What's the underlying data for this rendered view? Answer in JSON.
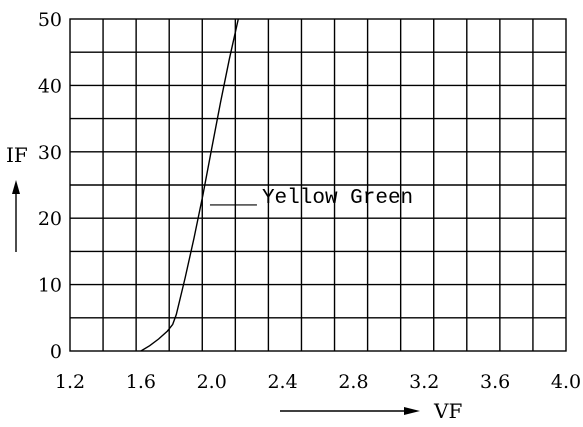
{
  "chart_data": {
    "type": "line",
    "title": "",
    "xlabel": "VF",
    "ylabel": "IF",
    "xlim": [
      1.2,
      4.0
    ],
    "ylim": [
      0,
      50
    ],
    "x_ticks": [
      1.2,
      1.6,
      2.0,
      2.4,
      2.8,
      3.2,
      3.6,
      4.0
    ],
    "x_tick_labels": [
      "1.2",
      "1.6",
      "2.0",
      "2.4",
      "2.8",
      "3.2",
      "3.6",
      "4.0"
    ],
    "y_ticks": [
      0,
      10,
      20,
      30,
      40,
      50
    ],
    "y_tick_labels": [
      "0",
      "10",
      "20",
      "30",
      "40",
      "50"
    ],
    "grid": true,
    "series": [
      {
        "name": "Yellow Green",
        "x": [
          1.6,
          1.65,
          1.7,
          1.75,
          1.78,
          1.8,
          1.85,
          1.9,
          1.95,
          2.0,
          2.05,
          2.1,
          2.15
        ],
        "y": [
          0,
          0.8,
          1.8,
          3.0,
          4.0,
          5.5,
          11.0,
          17.0,
          23.5,
          30.5,
          37.5,
          44.0,
          50.0
        ]
      }
    ],
    "annotations": [
      {
        "text": "Yellow Green",
        "points_to": {
          "x": 1.99,
          "y": 22
        }
      }
    ]
  }
}
